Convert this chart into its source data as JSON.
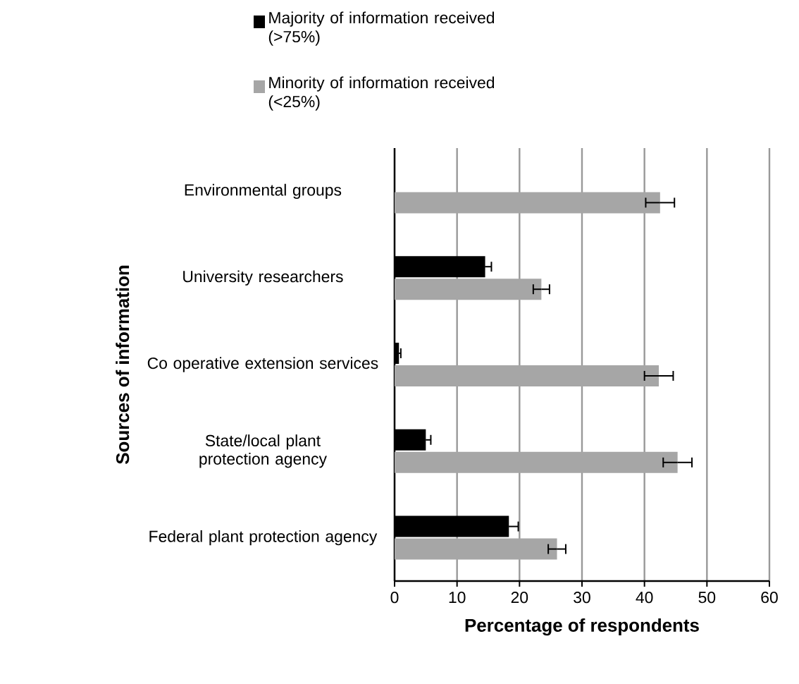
{
  "chart_data": {
    "type": "bar",
    "orientation": "horizontal",
    "xlabel": "Percentage of respondents",
    "ylabel": "Sources of information",
    "categories": [
      "Environmental groups",
      "University researchers",
      "Co operative extension services",
      "State/local plant protection agency",
      "Federal plant protection agency"
    ],
    "series": [
      {
        "name": "Majority of information received (>75%)",
        "color": "#000000",
        "values": [
          0,
          14.5,
          0.7,
          5,
          18.3
        ],
        "errors": [
          null,
          1,
          0.3,
          0.8,
          1.5
        ]
      },
      {
        "name": "Minority of information received (<25%)",
        "color": "#a6a6a6",
        "values": [
          42.5,
          23.5,
          42.3,
          45.3,
          26
        ],
        "errors": [
          2.3,
          1.3,
          2.3,
          2.3,
          1.4
        ]
      }
    ],
    "xlim": [
      0,
      60
    ],
    "xticks": [
      0,
      10,
      20,
      30,
      40,
      50,
      60
    ],
    "grid": "x",
    "legend": "top"
  }
}
